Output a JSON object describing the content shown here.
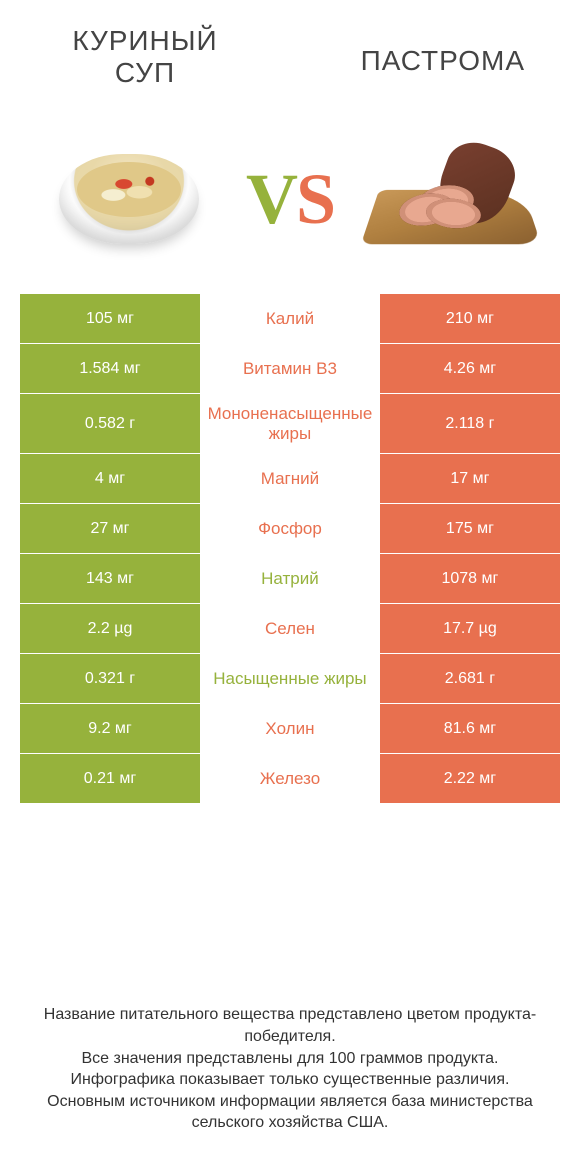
{
  "colors": {
    "green": "#96b23c",
    "orange": "#e8704f",
    "mid_bg": "#ffffff",
    "cell_text": "#ffffff"
  },
  "header": {
    "left_title_line1": "КУРИНЫЙ",
    "left_title_line2": "СУП",
    "right_title": "ПАСТРОМА",
    "vs_v": "V",
    "vs_s": "S"
  },
  "table": {
    "rows": [
      {
        "left": "105 мг",
        "mid": "Калий",
        "mid_color": "orange",
        "right": "210 мг"
      },
      {
        "left": "1.584 мг",
        "mid": "Витамин B3",
        "mid_color": "orange",
        "right": "4.26 мг"
      },
      {
        "left": "0.582 г",
        "mid": "Мононенасыщенные жиры",
        "mid_color": "orange",
        "right": "2.118 г"
      },
      {
        "left": "4 мг",
        "mid": "Магний",
        "mid_color": "orange",
        "right": "17 мг"
      },
      {
        "left": "27 мг",
        "mid": "Фосфор",
        "mid_color": "orange",
        "right": "175 мг"
      },
      {
        "left": "143 мг",
        "mid": "Натрий",
        "mid_color": "green",
        "right": "1078 мг"
      },
      {
        "left": "2.2 µg",
        "mid": "Селен",
        "mid_color": "orange",
        "right": "17.7 µg"
      },
      {
        "left": "0.321 г",
        "mid": "Насыщенные жиры",
        "mid_color": "green",
        "right": "2.681 г"
      },
      {
        "left": "9.2 мг",
        "mid": "Холин",
        "mid_color": "orange",
        "right": "81.6 мг"
      },
      {
        "left": "0.21 мг",
        "mid": "Железо",
        "mid_color": "orange",
        "right": "2.22 мг"
      }
    ]
  },
  "footnote": {
    "line1": "Название питательного вещества представлено цветом продукта-победителя.",
    "line2": "Все значения представлены для 100 граммов продукта.",
    "line3": "Инфографика показывает только существенные различия.",
    "line4": "Основным источником информации является база министерства сельского хозяйства США."
  }
}
